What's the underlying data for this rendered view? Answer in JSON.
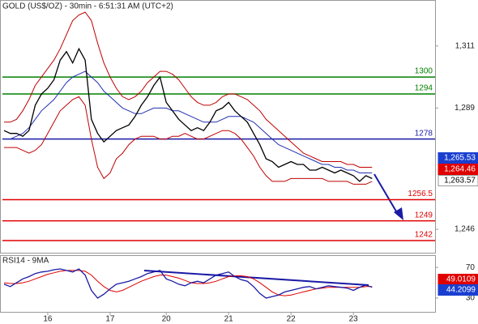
{
  "chart_data": [
    {
      "type": "line",
      "title": "GOLD (US$/OZ) - 30min - 6:51:31 AM (UTC+2)",
      "ylim": [
        1237.7,
        1327.3
      ],
      "yticks": [
        {
          "value": 1311,
          "label": "1,311"
        },
        {
          "value": 1289,
          "label": "1,289"
        },
        {
          "value": 1246,
          "label": "1,246"
        }
      ],
      "series": [
        {
          "color": "#c00000",
          "values": [
            1284,
            1284,
            1285,
            1288,
            1292,
            1297,
            1300,
            1303,
            1306,
            1310,
            1315,
            1320,
            1322,
            1323,
            1320,
            1312,
            1305,
            1300,
            1296,
            1293,
            1292,
            1293,
            1295,
            1298,
            1300,
            1302,
            1302,
            1301,
            1299,
            1296,
            1293,
            1291,
            1290,
            1290,
            1291,
            1293,
            1294,
            1294,
            1293,
            1292,
            1290,
            1288,
            1285,
            1283,
            1281,
            1279,
            1277,
            1275,
            1273,
            1272,
            1271,
            1270,
            1270,
            1270,
            1270,
            1269,
            1269,
            1268,
            1268,
            1268
          ]
        },
        {
          "color": "#c00000",
          "values": [
            1275,
            1275,
            1275,
            1274,
            1273,
            1274,
            1276,
            1280,
            1284,
            1288,
            1290,
            1292,
            1293,
            1290,
            1278,
            1268,
            1264,
            1266,
            1271,
            1273,
            1276,
            1278,
            1279,
            1279,
            1279,
            1278,
            1278,
            1279,
            1279,
            1280,
            1279,
            1278,
            1278,
            1279,
            1280,
            1281,
            1281,
            1280,
            1278,
            1275,
            1272,
            1268,
            1265,
            1263,
            1263,
            1263,
            1264,
            1264,
            1264,
            1264,
            1264,
            1264,
            1263,
            1263,
            1263,
            1263,
            1262,
            1262,
            1262,
            1263
          ]
        },
        {
          "color": "#1f2fb0",
          "values": [
            1278,
            1278,
            1279,
            1280,
            1282,
            1285,
            1288,
            1290,
            1292,
            1295,
            1298,
            1300,
            1301,
            1302,
            1300,
            1298,
            1295,
            1293,
            1291,
            1289,
            1288,
            1287,
            1287,
            1288,
            1289,
            1289,
            1289,
            1288,
            1288,
            1287,
            1286,
            1285,
            1284,
            1284,
            1284,
            1285,
            1286,
            1286,
            1286,
            1285,
            1284,
            1282,
            1280,
            1278,
            1276,
            1275,
            1274,
            1273,
            1272,
            1271,
            1270,
            1269,
            1269,
            1268,
            1268,
            1267,
            1267,
            1266,
            1266,
            1266
          ]
        },
        {
          "color": "#000000",
          "values": [
            1281,
            1280,
            1280,
            1279,
            1281,
            1290,
            1294,
            1296,
            1299,
            1306,
            1309,
            1305,
            1310,
            1306,
            1285,
            1280,
            1277,
            1279,
            1281,
            1282,
            1283,
            1286,
            1290,
            1293,
            1297,
            1300,
            1291,
            1288,
            1285,
            1283,
            1281,
            1282,
            1281,
            1284,
            1288,
            1289,
            1291,
            1288,
            1286,
            1284,
            1280,
            1276,
            1271,
            1270,
            1268,
            1269,
            1270,
            1269,
            1269,
            1267,
            1267,
            1268,
            1267,
            1266,
            1267,
            1266,
            1265,
            1263,
            1265,
            1264
          ]
        }
      ],
      "levels": [
        {
          "value": 1300,
          "color": "#008000"
        },
        {
          "value": 1294,
          "color": "#008000"
        },
        {
          "value": 1278,
          "color": "#1a1aa6"
        },
        {
          "value": 1256.5,
          "color": "#e00000"
        },
        {
          "value": 1249,
          "color": "#e00000"
        },
        {
          "value": 1242,
          "color": "#e00000"
        }
      ],
      "markers": [
        {
          "value": 1265.53,
          "label": "1,265.53",
          "color": "#1a3fd0"
        },
        {
          "value": 1264.46,
          "label": "1,264.46",
          "color": "#e00000"
        },
        {
          "value": 1263.57,
          "label": "1,263.57",
          "color": "#ffffff"
        }
      ]
    },
    {
      "type": "line",
      "title": "RSI14 - 9MA",
      "ylim": [
        12,
        86
      ],
      "yticks": [
        70,
        30
      ],
      "categories": [
        null,
        null,
        null,
        null,
        null,
        null,
        null,
        "16",
        null,
        null,
        null,
        null,
        null,
        null,
        null,
        null,
        null,
        "17",
        null,
        null,
        null,
        null,
        null,
        null,
        null,
        null,
        "20",
        null,
        null,
        null,
        null,
        null,
        null,
        null,
        null,
        null,
        "21",
        null,
        null,
        null,
        null,
        null,
        null,
        null,
        null,
        null,
        "22",
        null,
        null,
        null,
        null,
        null,
        null,
        null,
        null,
        null,
        "23",
        null,
        null,
        null
      ],
      "series": [
        {
          "color": "#e00000",
          "values": [
            50,
            49,
            49,
            50,
            52,
            55,
            58,
            61,
            63,
            65,
            66,
            66,
            66,
            65,
            60,
            52,
            45,
            40,
            38,
            40,
            44,
            48,
            52,
            55,
            58,
            60,
            60,
            58,
            56,
            53,
            50,
            49,
            49,
            50,
            52,
            55,
            58,
            59,
            59,
            58,
            55,
            50,
            44,
            38,
            34,
            33,
            34,
            36,
            38,
            40,
            42,
            43,
            44,
            44,
            44,
            44,
            44,
            44,
            45,
            45
          ]
        },
        {
          "color": "#1a1aa6",
          "values": [
            48,
            45,
            50,
            55,
            58,
            62,
            64,
            65,
            67,
            68,
            66,
            64,
            68,
            60,
            40,
            30,
            35,
            42,
            48,
            50,
            52,
            55,
            58,
            62,
            64,
            66,
            55,
            52,
            48,
            46,
            50,
            52,
            50,
            55,
            60,
            62,
            64,
            58,
            54,
            52,
            45,
            36,
            30,
            32,
            34,
            38,
            40,
            42,
            44,
            45,
            42,
            44,
            46,
            45,
            44,
            43,
            40,
            44,
            47,
            44
          ]
        }
      ],
      "markers": [
        {
          "value": 49.0109,
          "label": "49.0109",
          "color": "#e00000"
        },
        {
          "value": 44.2099,
          "label": "44.2099",
          "color": "#1a3fd0"
        }
      ]
    }
  ]
}
